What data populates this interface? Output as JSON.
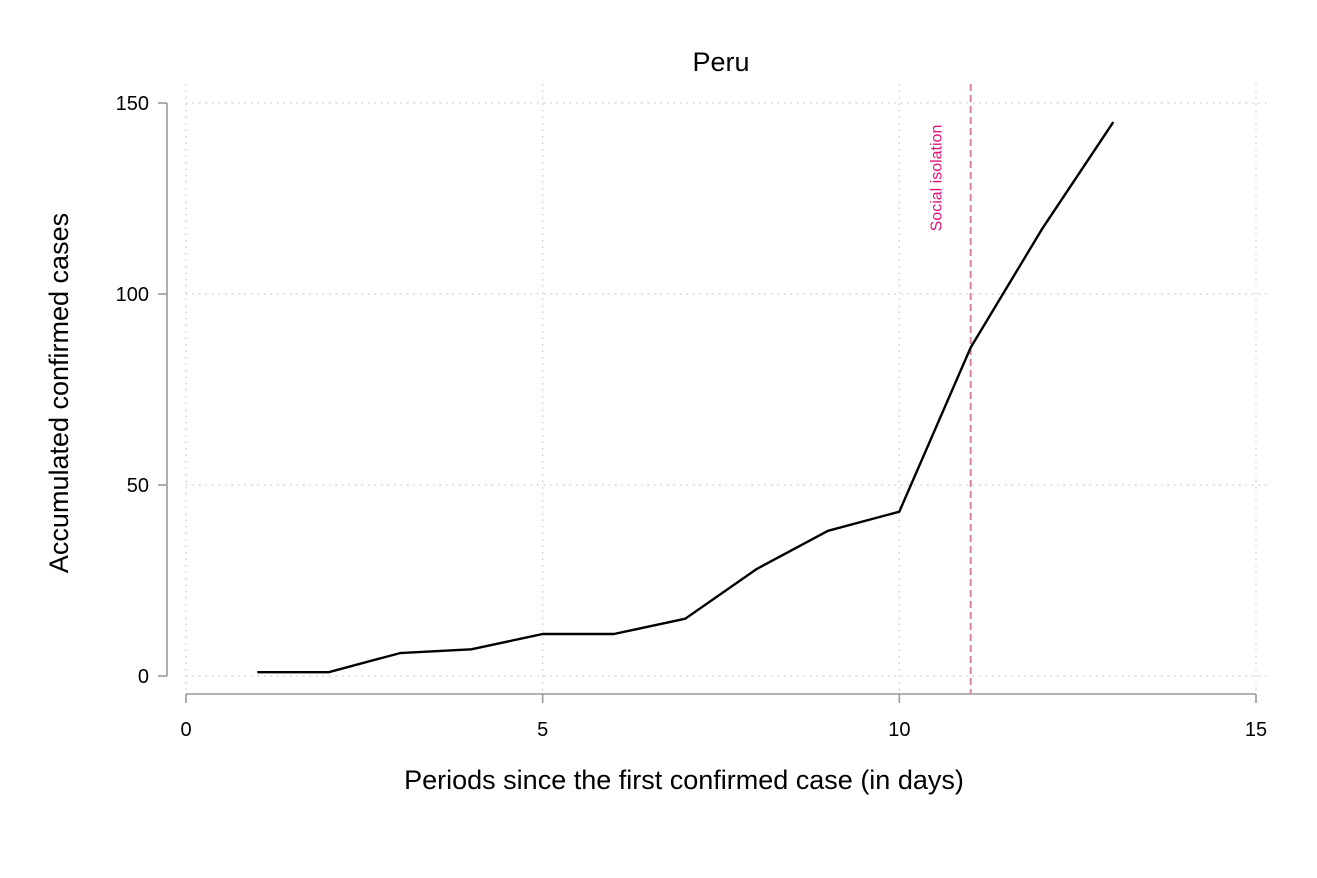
{
  "chart_data": {
    "type": "line",
    "title": "Peru",
    "xlabel": "Periods since the first confirmed case (in days)",
    "ylabel": "Accumulated confirmed cases",
    "xlim": [
      0,
      15
    ],
    "ylim": [
      0,
      150
    ],
    "x_ticks": [
      0,
      5,
      10,
      15
    ],
    "y_ticks": [
      0,
      50,
      100,
      150
    ],
    "grid": true,
    "series": [
      {
        "color": "#000000",
        "x": [
          1,
          2,
          3,
          4,
          5,
          6,
          7,
          8,
          9,
          10,
          11,
          12,
          13
        ],
        "y": [
          1,
          1,
          6,
          7,
          11,
          11,
          15,
          28,
          38,
          43,
          86,
          117,
          145
        ]
      }
    ],
    "annotations": [
      {
        "type": "vline",
        "x": 11,
        "label": "Social isolation",
        "line_color": "#d4849e",
        "label_color": "#e0107a",
        "style": "dashed"
      }
    ]
  }
}
